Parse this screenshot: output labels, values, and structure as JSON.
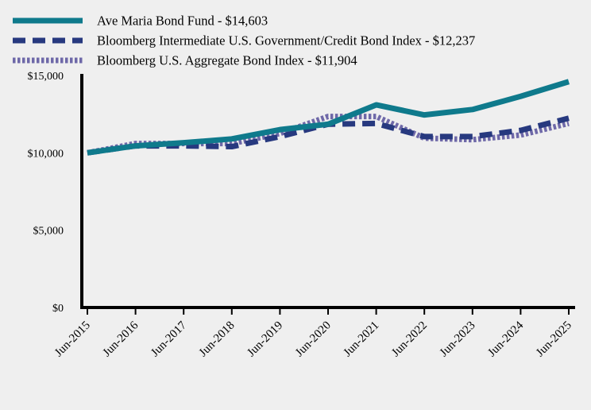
{
  "chart_data": {
    "type": "line",
    "x": [
      "Jun-2015",
      "Jun-2016",
      "Jun-2017",
      "Jun-2018",
      "Jun-2019",
      "Jun-2020",
      "Jun-2021",
      "Jun-2022",
      "Jun-2023",
      "Jun-2024",
      "Jun-2025"
    ],
    "ylim": [
      0,
      15000
    ],
    "yticks": [
      0,
      5000,
      10000,
      15000
    ],
    "ytick_labels": [
      "$0",
      "$5,000",
      "$10,000",
      "$15,000"
    ],
    "grid": false,
    "legend_position": "top-left",
    "series": [
      {
        "name": "Ave Maria Bond Fund - $14,603",
        "color": "#0f7a8c",
        "style": "solid",
        "values": [
          10000,
          10450,
          10650,
          10900,
          11500,
          11850,
          13100,
          12450,
          12800,
          13650,
          14603
        ]
      },
      {
        "name": "Bloomberg Intermediate U.S. Government/Credit Bond Index - $12,237",
        "color": "#27397f",
        "style": "dashed",
        "values": [
          10000,
          10450,
          10450,
          10400,
          11050,
          11850,
          11900,
          11050,
          11050,
          11450,
          12237
        ]
      },
      {
        "name": "Bloomberg U.S. Aggregate Bond Index - $11,904",
        "color": "#6e68a8",
        "style": "dotted",
        "values": [
          10000,
          10600,
          10600,
          10600,
          11250,
          12350,
          12350,
          10950,
          10850,
          11150,
          11904
        ]
      }
    ]
  }
}
